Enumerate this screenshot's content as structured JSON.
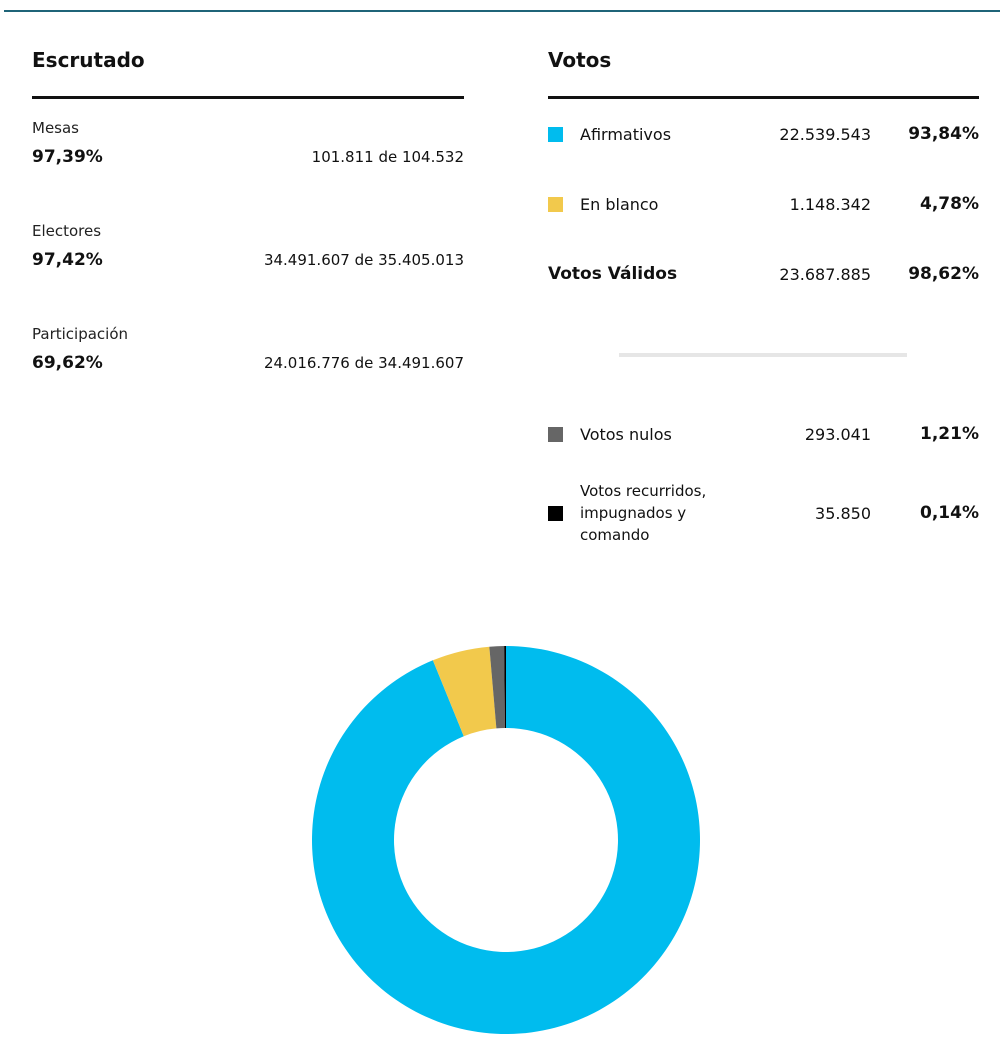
{
  "escrutado": {
    "title": "Escrutado",
    "stats": [
      {
        "label": "Mesas",
        "pct": "97,39%",
        "detail": "101.811 de 104.532"
      },
      {
        "label": "Electores",
        "pct": "97,42%",
        "detail": "34.491.607 de 35.405.013"
      },
      {
        "label": "Participación",
        "pct": "69,62%",
        "detail": "24.016.776 de 34.491.607"
      }
    ]
  },
  "votos": {
    "title": "Votos",
    "rows": [
      {
        "name": "Afirmativos",
        "count": "22.539.543",
        "pct": "93,84%",
        "color": "#00bcee"
      },
      {
        "name": "En blanco",
        "count": "1.148.342",
        "pct": "4,78%",
        "color": "#f2c94c"
      },
      {
        "name": "Votos Válidos",
        "count": "23.687.885",
        "pct": "98,62%"
      },
      {
        "name": "Votos nulos",
        "count": "293.041",
        "pct": "1,21%",
        "color": "#666666"
      },
      {
        "name": "Votos recurridos, impugnados y comando",
        "count": "35.850",
        "pct": "0,14%",
        "color": "#000000"
      }
    ]
  },
  "chart_data": {
    "type": "pie",
    "donut": true,
    "categories": [
      "Afirmativos",
      "En blanco",
      "Votos nulos",
      "Votos recurridos, impugnados y comando"
    ],
    "values": [
      22539543,
      1148342,
      293041,
      35850
    ],
    "colors": [
      "#00bcee",
      "#f2c94c",
      "#666666",
      "#000000"
    ]
  }
}
